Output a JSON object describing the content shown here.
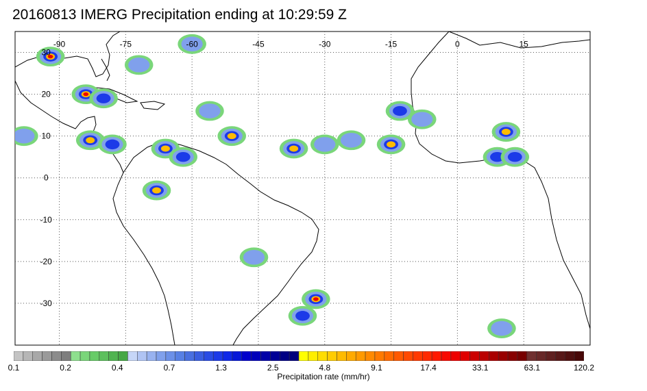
{
  "title": "20160813 IMERG Precipitation ending at 10:29:59 Z",
  "map": {
    "lon_range": [
      -100,
      30
    ],
    "lat_range": [
      -40,
      35
    ],
    "lon_tick_labels": [
      {
        "text": "-90",
        "lon": -90
      },
      {
        "text": "-75",
        "lon": -75
      },
      {
        "text": "-60",
        "lon": -60
      },
      {
        "text": "-45",
        "lon": -45
      },
      {
        "text": "-30",
        "lon": -30
      },
      {
        "text": "-15",
        "lon": -15
      },
      {
        "text": "0",
        "lon": 0
      },
      {
        "text": "15",
        "lon": 15
      }
    ],
    "lat_tick_labels": [
      {
        "text": "30",
        "lat": 30
      },
      {
        "text": "20",
        "lat": 20
      },
      {
        "text": "10",
        "lat": 10
      },
      {
        "text": "0",
        "lat": 0
      },
      {
        "text": "-10",
        "lat": -10
      },
      {
        "text": "-20",
        "lat": -20
      },
      {
        "text": "-30",
        "lat": -30
      }
    ],
    "grid": "dotted",
    "rain_cells": [
      {
        "lon": -92,
        "lat": 29,
        "intensity": 5
      },
      {
        "lon": -84,
        "lat": 20,
        "intensity": 5
      },
      {
        "lon": -80,
        "lat": 19,
        "intensity": 3
      },
      {
        "lon": -83,
        "lat": 9,
        "intensity": 4
      },
      {
        "lon": -78,
        "lat": 8,
        "intensity": 3
      },
      {
        "lon": -66,
        "lat": 7,
        "intensity": 4
      },
      {
        "lon": -62,
        "lat": 5,
        "intensity": 3
      },
      {
        "lon": -68,
        "lat": -3,
        "intensity": 4
      },
      {
        "lon": -51,
        "lat": 10,
        "intensity": 4
      },
      {
        "lon": -37,
        "lat": 7,
        "intensity": 4
      },
      {
        "lon": -30,
        "lat": 8,
        "intensity": 2
      },
      {
        "lon": -24,
        "lat": 9,
        "intensity": 2
      },
      {
        "lon": -15,
        "lat": 8,
        "intensity": 4
      },
      {
        "lon": -13,
        "lat": 16,
        "intensity": 3
      },
      {
        "lon": -8,
        "lat": 14,
        "intensity": 2
      },
      {
        "lon": 11,
        "lat": 11,
        "intensity": 4
      },
      {
        "lon": 9,
        "lat": 5,
        "intensity": 3
      },
      {
        "lon": 13,
        "lat": 5,
        "intensity": 3
      },
      {
        "lon": -32,
        "lat": -29,
        "intensity": 5
      },
      {
        "lon": -35,
        "lat": -33,
        "intensity": 3
      },
      {
        "lon": -60,
        "lat": 32,
        "intensity": 2
      },
      {
        "lon": -72,
        "lat": 27,
        "intensity": 2
      },
      {
        "lon": -56,
        "lat": 16,
        "intensity": 2
      },
      {
        "lon": -46,
        "lat": -19,
        "intensity": 2
      },
      {
        "lon": -98,
        "lat": 10,
        "intensity": 2
      },
      {
        "lon": 10,
        "lat": -36,
        "intensity": 2
      }
    ]
  },
  "colorbar": {
    "caption": "Precipitation rate (mm/hr)",
    "labels": [
      "0.1",
      "0.2",
      "0.4",
      "0.7",
      "1.3",
      "2.5",
      "4.8",
      "9.1",
      "17.4",
      "33.1",
      "63.1",
      "120.2"
    ],
    "colors": [
      "#c4c4c4",
      "#b6b6b6",
      "#a8a8a8",
      "#9a9a9a",
      "#8c8c8c",
      "#7e7e7e",
      "#8ee08e",
      "#7ad67a",
      "#68cc68",
      "#5cc05c",
      "#50b450",
      "#46a846",
      "#c6d6f8",
      "#b0c4f4",
      "#98b2f0",
      "#80a0ec",
      "#6c90e8",
      "#5880e4",
      "#4a70e0",
      "#3a5ee0",
      "#2a4ce4",
      "#1c3ae8",
      "#0e28e8",
      "#0618d8",
      "#0000cc",
      "#0000ba",
      "#0000a8",
      "#000096",
      "#000084",
      "#00007c",
      "#ffff00",
      "#ffee00",
      "#ffdd00",
      "#ffcc00",
      "#ffbb00",
      "#ffaa00",
      "#ff9a00",
      "#ff8a00",
      "#ff7a00",
      "#ff6a00",
      "#ff5a00",
      "#ff4a00",
      "#ff3a00",
      "#ff2a00",
      "#ff1a00",
      "#f80a00",
      "#ee0000",
      "#e00000",
      "#cc0000",
      "#bb0000",
      "#aa0000",
      "#990000",
      "#880000",
      "#770000",
      "#703030",
      "#682828",
      "#602020",
      "#581818",
      "#501010",
      "#480808"
    ]
  }
}
